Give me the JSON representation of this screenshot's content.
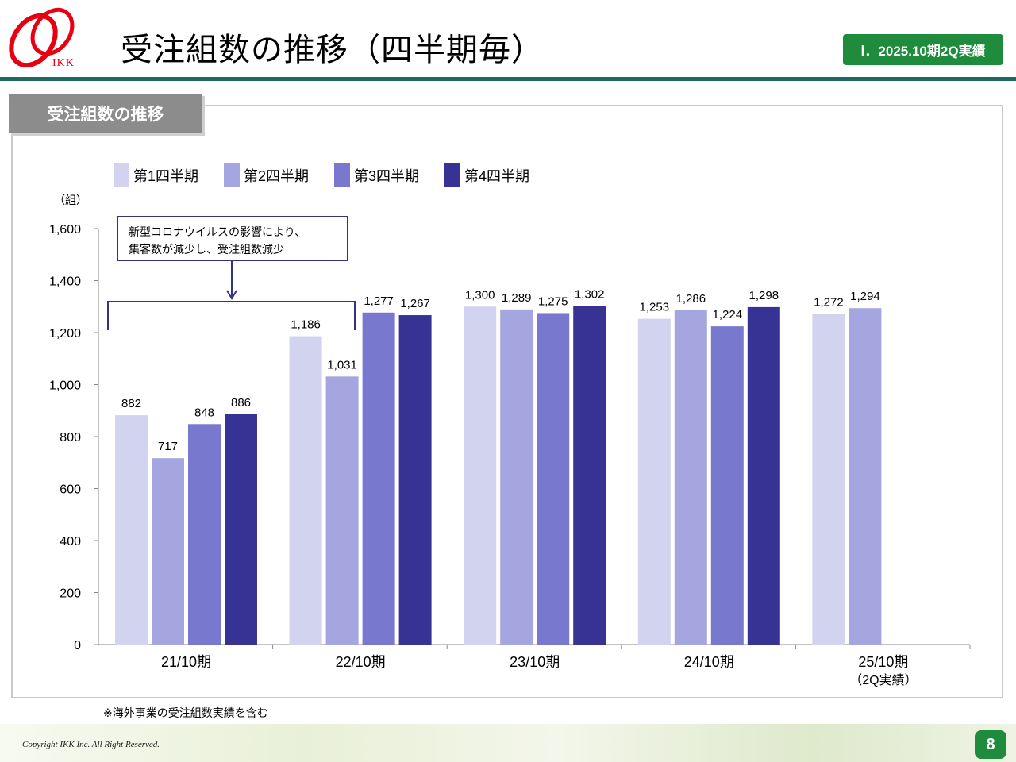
{
  "header": {
    "logo_text": "IKK",
    "title": "受注組数の推移（四半期毎）",
    "badge": "Ⅰ．2025.10期2Q実績"
  },
  "section": {
    "tab_label": "受注組数の推移"
  },
  "annotation": {
    "line1": "新型コロナウイルスの影響により、",
    "line2": "集客数が減少し、受注組数減少"
  },
  "footnote": "※海外事業の受注組数実績を含む",
  "footer": {
    "copyright": "Copyright IKK Inc. All Right Reserved.",
    "page": "8"
  },
  "colors": {
    "brand_green": "#1f8b3c",
    "rule_teal": "#1d6b5e",
    "logo_red": "#e60012"
  },
  "chart_data": {
    "type": "bar",
    "ylabel": "（組）",
    "ylim": [
      0,
      1600
    ],
    "yticks": [
      0,
      200,
      400,
      600,
      800,
      1000,
      1200,
      1400,
      1600
    ],
    "categories": [
      "21/10期",
      "22/10期",
      "23/10期",
      "24/10期",
      "25/10期"
    ],
    "category_sublabels": [
      "",
      "",
      "",
      "",
      "（2Q実績）"
    ],
    "legend_position": "top-left",
    "series": [
      {
        "name": "第1四半期",
        "color": "#d1d3ef",
        "values": [
          882,
          1186,
          1300,
          1253,
          1272
        ],
        "labels": [
          "882",
          "1,186",
          "1,300",
          "1,253",
          "1,272"
        ]
      },
      {
        "name": "第2四半期",
        "color": "#a5a5df",
        "values": [
          717,
          1031,
          1289,
          1286,
          1294
        ],
        "labels": [
          "717",
          "1,031",
          "1,289",
          "1,286",
          "1,294"
        ]
      },
      {
        "name": "第3四半期",
        "color": "#7878cf",
        "values": [
          848,
          1277,
          1275,
          1224,
          null
        ],
        "labels": [
          "848",
          "1,277",
          "1,275",
          "1,224",
          ""
        ]
      },
      {
        "name": "第4四半期",
        "color": "#363395",
        "values": [
          886,
          1267,
          1302,
          1298,
          null
        ],
        "labels": [
          "886",
          "1,267",
          "1,302",
          "1,298",
          ""
        ]
      }
    ]
  }
}
